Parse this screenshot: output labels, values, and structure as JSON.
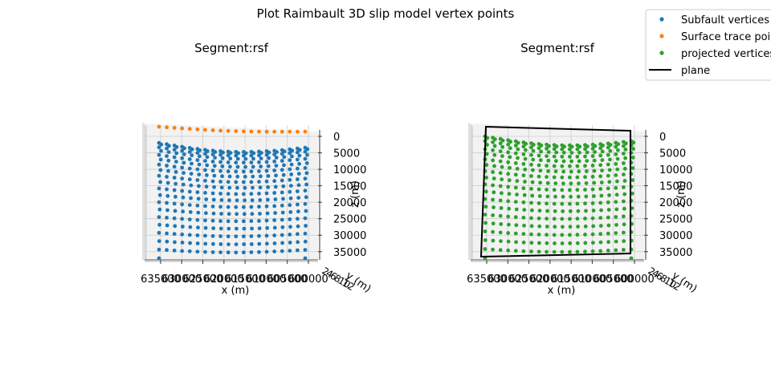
{
  "figure": {
    "title": "Plot Raimbault 3D slip model vertex points"
  },
  "legend": {
    "placement": "top-right",
    "entries": [
      {
        "label": "Subfault vertices",
        "color": "#1f77b4",
        "marker": "dot"
      },
      {
        "label": "Surface trace points",
        "color": "#ff7f0e",
        "marker": "dot"
      },
      {
        "label": "projected vertices",
        "color": "#2ca02c",
        "marker": "dot"
      },
      {
        "label": "plane",
        "color": "#000000",
        "marker": "line"
      }
    ]
  },
  "colors": {
    "subfault": "#1f77b4",
    "surface": "#ff7f0e",
    "projected": "#2ca02c",
    "plane": "#000000",
    "pane": "#f2f2f2",
    "grid": "#cccccc"
  },
  "chart_data": [
    {
      "type": "scatter",
      "projection": "3d",
      "title": "Segment:rsf",
      "xlabel": "x (m)",
      "ylabel": "y (m)",
      "zlabel": "z (m)",
      "x_tick_labels": [
        "635000",
        "630000",
        "625000",
        "620000",
        "615000",
        "610000",
        "605000",
        "600000"
      ],
      "y_tick_labels": [
        "2",
        "4",
        "6",
        "8",
        "10",
        "12"
      ],
      "z_ticks": [
        0,
        5000,
        10000,
        15000,
        20000,
        25000,
        30000,
        35000
      ],
      "zlim": [
        0,
        37000
      ],
      "grid": true,
      "series": [
        {
          "name": "Subfault vertices",
          "rows": 20,
          "cols": 20,
          "depth_top": 2000,
          "depth_bottom": 37000
        },
        {
          "name": "Surface trace points",
          "rows": 1,
          "cols": 20,
          "depth_top": 0,
          "depth_bottom": 0
        }
      ]
    },
    {
      "type": "scatter",
      "projection": "3d",
      "title": "Segment:rsf",
      "xlabel": "x (m)",
      "ylabel": "y (m)",
      "zlabel": "z (m)",
      "x_tick_labels": [
        "635000",
        "630000",
        "625000",
        "620000",
        "615000",
        "610000",
        "605000",
        "600000"
      ],
      "y_tick_labels": [
        "2",
        "4",
        "6",
        "8",
        "10",
        "12"
      ],
      "z_ticks": [
        0,
        5000,
        10000,
        15000,
        20000,
        25000,
        30000,
        35000
      ],
      "zlim": [
        0,
        37000
      ],
      "grid": true,
      "series": [
        {
          "name": "projected vertices",
          "rows": 20,
          "cols": 20,
          "depth_top": 0,
          "depth_bottom": 37000
        },
        {
          "name": "plane",
          "outline": true
        }
      ]
    }
  ]
}
